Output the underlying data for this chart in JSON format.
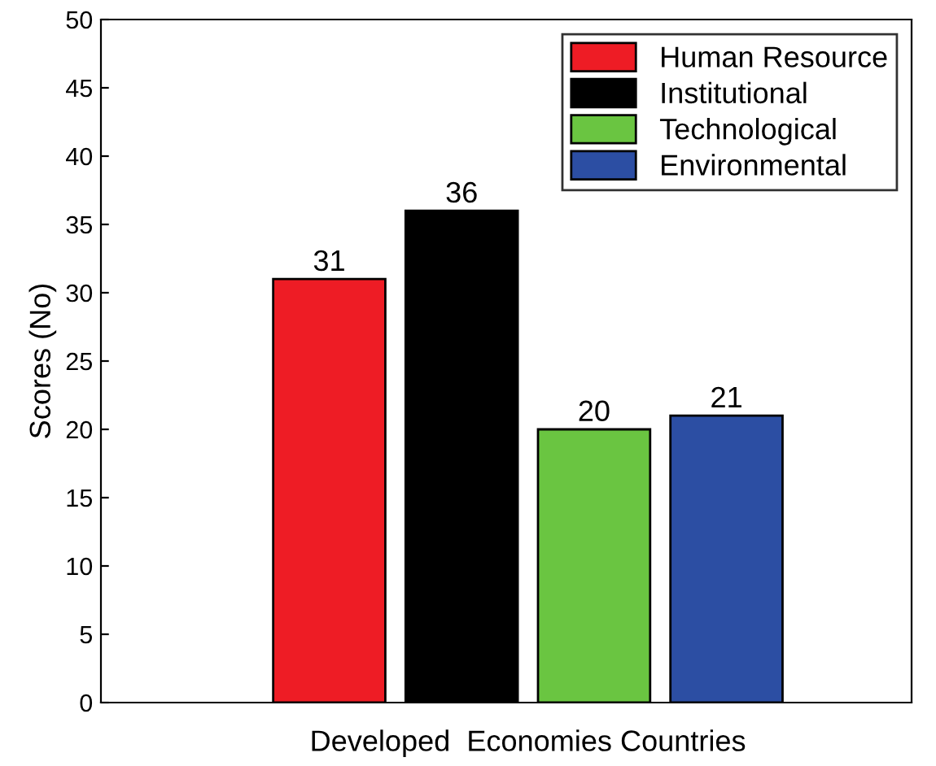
{
  "chart_data": {
    "type": "bar",
    "ylabel": "Scores (No)",
    "categories": [
      "Developed  Economies Countries"
    ],
    "series": [
      {
        "name": "Human Resource",
        "color": "#ee1c25",
        "values": [
          31
        ]
      },
      {
        "name": "Institutional",
        "color": "#000000",
        "values": [
          36
        ]
      },
      {
        "name": "Technological",
        "color": "#6ac541",
        "values": [
          20
        ]
      },
      {
        "name": "Environmental",
        "color": "#2c4ea3",
        "values": [
          21
        ]
      }
    ],
    "ylim": [
      0,
      50
    ],
    "yticks": [
      0,
      5,
      10,
      15,
      20,
      25,
      30,
      35,
      40,
      45,
      50
    ],
    "data_labels": true,
    "legend": "top right",
    "grid": false
  }
}
